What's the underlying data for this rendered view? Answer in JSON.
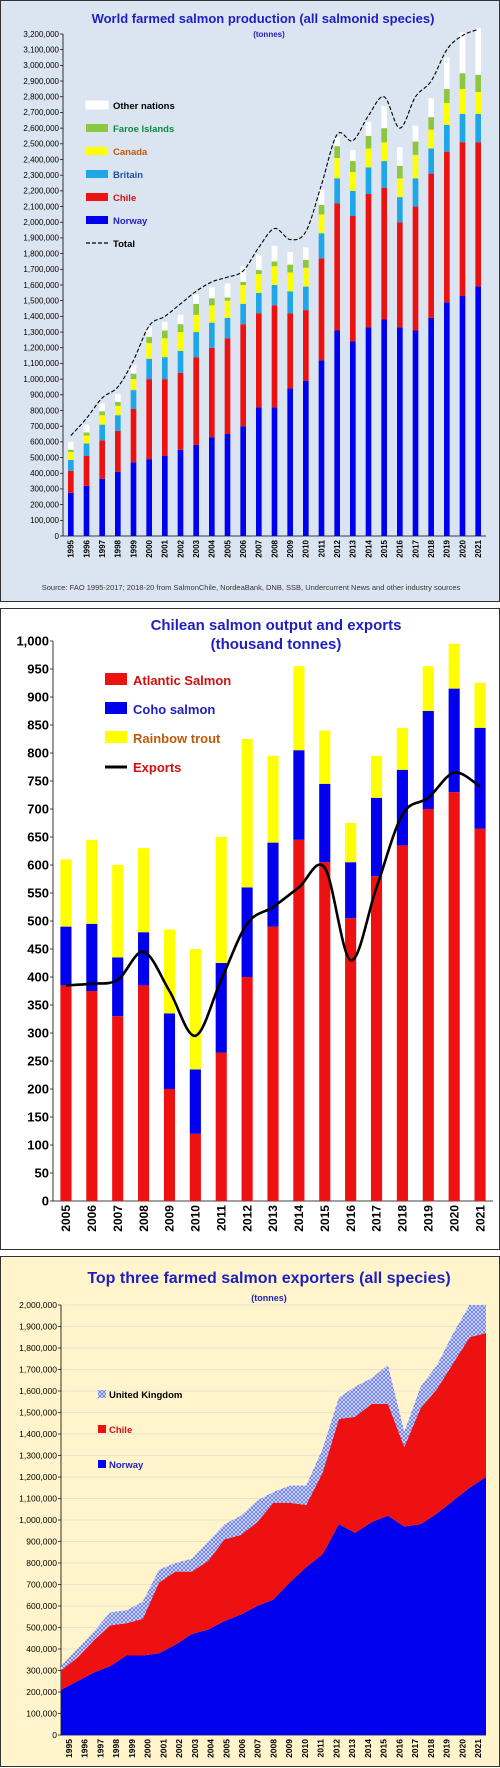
{
  "chart_data": [
    {
      "type": "bar",
      "stacked": true,
      "title": "World farmed salmon production (all salmonid species)",
      "subtitle": "(tonnes)",
      "source": "Source: FAO 1995-2017; 2018-20 from SalmonChile, NordeaBank, DNB, SSB, Undercurrent News and other industry sources",
      "categories": [
        "1995",
        "1996",
        "1997",
        "1998",
        "1999",
        "2000",
        "2001",
        "2002",
        "2003",
        "2004",
        "2005",
        "2006",
        "2007",
        "2008",
        "2009",
        "2010",
        "2011",
        "2012",
        "2013",
        "2014",
        "2015",
        "2016",
        "2017",
        "2018",
        "2019",
        "2020",
        "2021"
      ],
      "ylim": [
        0,
        3200000
      ],
      "ytick_step": 100000,
      "ytick_labels": [
        "0",
        "100,000",
        "200,000",
        "300,000",
        "400,000",
        "500,000",
        "600,000",
        "700,000",
        "800,000",
        "900,000",
        "1,000,000",
        "1,100,000",
        "1,200,000",
        "1,300,000",
        "1,400,000",
        "1,500,000",
        "1,600,000",
        "1,700,000",
        "1,800,000",
        "1,900,000",
        "2,000,000",
        "2,100,000",
        "2,200,000",
        "2,300,000",
        "2,400,000",
        "2,500,000",
        "2,600,000",
        "2,700,000",
        "2,800,000",
        "2,900,000",
        "3,000,000",
        "3,100,000",
        "3,200,000"
      ],
      "legend_position": "top-left",
      "series": [
        {
          "name": "Norway",
          "color": "#0000ee",
          "values": [
            275000,
            320000,
            365000,
            410000,
            470000,
            490000,
            510000,
            550000,
            580000,
            630000,
            650000,
            700000,
            820000,
            820000,
            940000,
            990000,
            1120000,
            1310000,
            1240000,
            1330000,
            1380000,
            1330000,
            1310000,
            1390000,
            1490000,
            1530000,
            1590000
          ]
        },
        {
          "name": "Chile",
          "color": "#ee1111",
          "values": [
            140000,
            190000,
            245000,
            260000,
            340000,
            510000,
            490000,
            490000,
            560000,
            570000,
            610000,
            650000,
            600000,
            650000,
            480000,
            450000,
            650000,
            810000,
            800000,
            850000,
            840000,
            670000,
            790000,
            920000,
            960000,
            980000,
            920000
          ]
        },
        {
          "name": "Britain",
          "color": "#1ea6e8",
          "values": [
            70000,
            80000,
            100000,
            100000,
            120000,
            130000,
            140000,
            140000,
            160000,
            160000,
            130000,
            130000,
            130000,
            130000,
            140000,
            150000,
            160000,
            160000,
            160000,
            170000,
            170000,
            160000,
            180000,
            160000,
            170000,
            180000,
            180000
          ]
        },
        {
          "name": "Canada",
          "color": "#ffff00",
          "values": [
            50000,
            50000,
            60000,
            60000,
            70000,
            100000,
            120000,
            120000,
            110000,
            110000,
            110000,
            120000,
            120000,
            120000,
            120000,
            120000,
            120000,
            130000,
            120000,
            120000,
            120000,
            120000,
            150000,
            120000,
            140000,
            160000,
            140000
          ]
        },
        {
          "name": "Faroe Islands",
          "color": "#8dc63f",
          "values": [
            15000,
            20000,
            25000,
            25000,
            35000,
            40000,
            50000,
            50000,
            70000,
            45000,
            20000,
            20000,
            25000,
            30000,
            50000,
            50000,
            60000,
            75000,
            70000,
            80000,
            90000,
            80000,
            85000,
            80000,
            90000,
            100000,
            110000
          ]
        },
        {
          "name": "Other nations",
          "color": "#ffffff",
          "values": [
            50000,
            50000,
            50000,
            50000,
            55000,
            60000,
            55000,
            60000,
            60000,
            70000,
            90000,
            100000,
            100000,
            100000,
            80000,
            80000,
            100000,
            60000,
            70000,
            90000,
            140000,
            120000,
            100000,
            120000,
            200000,
            260000,
            300000
          ]
        },
        {
          "name": "Total",
          "type": "line",
          "dashed": true,
          "color": "#000000",
          "values": [
            640000,
            750000,
            880000,
            950000,
            1120000,
            1340000,
            1400000,
            1480000,
            1560000,
            1620000,
            1650000,
            1690000,
            1840000,
            1960000,
            1890000,
            1940000,
            2240000,
            2560000,
            2520000,
            2680000,
            2800000,
            2600000,
            2800000,
            2900000,
            3100000,
            3190000,
            3230000
          ]
        }
      ]
    },
    {
      "type": "bar",
      "stacked": true,
      "title": "Chilean salmon output and exports",
      "subtitle": "(thousand tonnes)",
      "categories": [
        "2005",
        "2006",
        "2007",
        "2008",
        "2009",
        "2010",
        "2011",
        "2012",
        "2013",
        "2014",
        "2015",
        "2016",
        "2017",
        "2018",
        "2019",
        "2020",
        "2021"
      ],
      "ylim": [
        0,
        1000
      ],
      "ytick_step": 50,
      "ytick_labels": [
        "0",
        "50",
        "100",
        "150",
        "200",
        "250",
        "300",
        "350",
        "400",
        "450",
        "500",
        "550",
        "600",
        "650",
        "700",
        "750",
        "800",
        "850",
        "900",
        "950",
        "1,000"
      ],
      "legend_position": "top-left",
      "series": [
        {
          "name": "Atlantic Salmon",
          "color": "#ee1111",
          "values": [
            385,
            375,
            330,
            385,
            200,
            120,
            265,
            400,
            490,
            645,
            605,
            505,
            580,
            635,
            700,
            730,
            665
          ]
        },
        {
          "name": "Coho salmon",
          "color": "#0000ee",
          "values": [
            105,
            120,
            105,
            95,
            135,
            115,
            160,
            160,
            150,
            160,
            140,
            100,
            140,
            135,
            175,
            185,
            180
          ]
        },
        {
          "name": "Rainbow trout",
          "color": "#ffff00",
          "values": [
            120,
            150,
            165,
            150,
            150,
            215,
            225,
            265,
            155,
            150,
            95,
            70,
            75,
            75,
            80,
            80,
            80
          ]
        },
        {
          "name": "Exports",
          "type": "line",
          "color": "#000000",
          "values": [
            385,
            388,
            395,
            445,
            375,
            295,
            395,
            495,
            525,
            560,
            595,
            430,
            560,
            690,
            720,
            765,
            740
          ]
        }
      ]
    },
    {
      "type": "area",
      "stacked": true,
      "title": "Top three farmed salmon exporters (all species)",
      "subtitle": "(tonnes)",
      "categories": [
        "1995",
        "1996",
        "1997",
        "1998",
        "1999",
        "2000",
        "2001",
        "2002",
        "2003",
        "2004",
        "2005",
        "2006",
        "2007",
        "2008",
        "2009",
        "2010",
        "2011",
        "2012",
        "2013",
        "2014",
        "2015",
        "2016",
        "2017",
        "2018",
        "2019",
        "2020",
        "2021"
      ],
      "ylim": [
        0,
        2000000
      ],
      "ytick_step": 100000,
      "ytick_labels": [
        "0",
        "100,000",
        "200,000",
        "300,000",
        "400,000",
        "500,000",
        "600,000",
        "700,000",
        "800,000",
        "900,000",
        "1,000,000",
        "1,100,000",
        "1,200,000",
        "1,300,000",
        "1,400,000",
        "1,500,000",
        "1,600,000",
        "1,700,000",
        "1,800,000",
        "1,900,000",
        "2,000,000"
      ],
      "legend_position": "left",
      "series": [
        {
          "name": "Norway",
          "color": "#0000ee",
          "values": [
            210000,
            250000,
            290000,
            320000,
            370000,
            370000,
            380000,
            420000,
            470000,
            490000,
            530000,
            560000,
            600000,
            630000,
            710000,
            780000,
            840000,
            980000,
            940000,
            990000,
            1020000,
            970000,
            980000,
            1030000,
            1090000,
            1150000,
            1200000
          ]
        },
        {
          "name": "Chile",
          "color": "#ee1111",
          "values": [
            90000,
            110000,
            150000,
            190000,
            150000,
            170000,
            330000,
            340000,
            290000,
            320000,
            380000,
            370000,
            390000,
            450000,
            370000,
            290000,
            380000,
            490000,
            540000,
            550000,
            520000,
            370000,
            540000,
            580000,
            640000,
            700000,
            670000
          ]
        },
        {
          "name": "United Kingdom",
          "color": "#6a7ee8",
          "values": [
            20000,
            40000,
            40000,
            60000,
            60000,
            80000,
            60000,
            40000,
            60000,
            90000,
            70000,
            90000,
            100000,
            50000,
            80000,
            90000,
            110000,
            100000,
            140000,
            120000,
            180000,
            70000,
            100000,
            110000,
            140000,
            150000,
            130000
          ]
        }
      ]
    }
  ]
}
